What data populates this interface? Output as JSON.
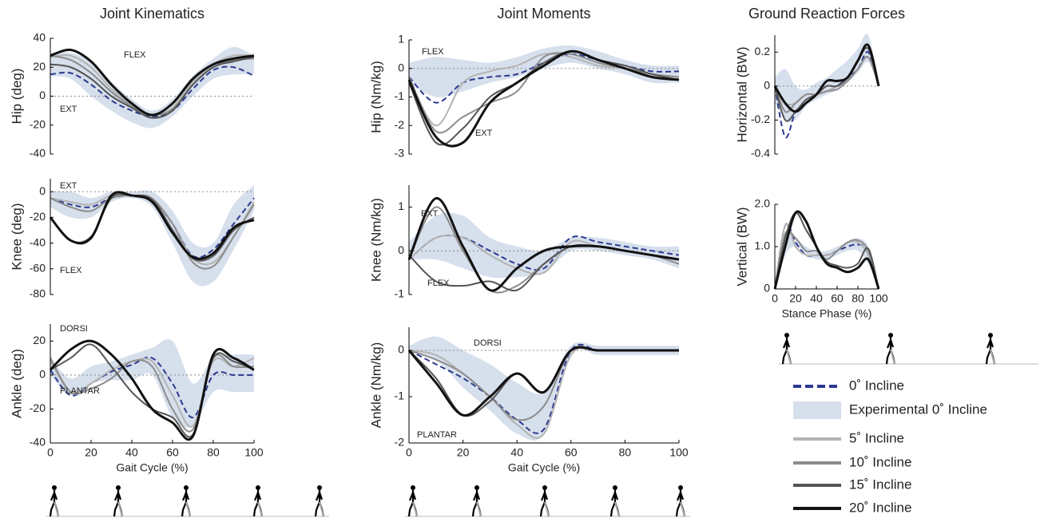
{
  "chart_data": [
    {
      "type": "line",
      "title": "Joint Kinematics",
      "y_label": "Hip (deg)",
      "annotations": [
        "FLEX",
        "EXT"
      ],
      "x": [
        0,
        10,
        20,
        30,
        40,
        50,
        60,
        70,
        80,
        90,
        100
      ],
      "xlim": [
        0,
        100
      ],
      "ylim": [
        -40,
        40
      ],
      "yticks": [
        -40,
        -20,
        0,
        20,
        40
      ],
      "zero_line": true,
      "band": {
        "lower": [
          14,
          12,
          0,
          -10,
          -18,
          -22,
          -14,
          0,
          12,
          15,
          15
        ],
        "upper": [
          30,
          30,
          24,
          10,
          -2,
          -10,
          -2,
          14,
          26,
          34,
          28
        ]
      },
      "series": [
        {
          "values": [
            15,
            16,
            8,
            -3,
            -10,
            -14,
            -10,
            5,
            18,
            20,
            14
          ]
        },
        {
          "values": [
            27,
            28,
            20,
            5,
            -6,
            -13,
            -8,
            10,
            22,
            28,
            28
          ]
        },
        {
          "values": [
            28,
            25,
            16,
            3,
            -7,
            -13,
            -9,
            8,
            20,
            25,
            26
          ]
        },
        {
          "values": [
            22,
            20,
            12,
            0,
            -8,
            -15,
            -10,
            8,
            20,
            24,
            27
          ]
        },
        {
          "values": [
            28,
            32,
            24,
            8,
            -5,
            -13,
            -5,
            12,
            22,
            26,
            28
          ]
        }
      ]
    },
    {
      "type": "line",
      "y_label": "Knee (deg)",
      "annotations": [
        "EXT",
        "FLEX"
      ],
      "x": [
        0,
        10,
        20,
        30,
        40,
        50,
        60,
        70,
        80,
        90,
        100
      ],
      "xlim": [
        0,
        100
      ],
      "ylim": [
        -80,
        10
      ],
      "yticks": [
        -80,
        -60,
        -40,
        -20,
        0
      ],
      "zero_line": true,
      "band": {
        "lower": [
          -12,
          -20,
          -20,
          -8,
          -5,
          -12,
          -40,
          -70,
          -70,
          -45,
          -15
        ],
        "upper": [
          0,
          0,
          -5,
          0,
          0,
          0,
          -15,
          -40,
          -40,
          -10,
          5
        ]
      },
      "series": [
        {
          "values": [
            -5,
            -10,
            -12,
            -5,
            -3,
            -6,
            -25,
            -50,
            -45,
            -25,
            -5
          ]
        },
        {
          "values": [
            -5,
            -8,
            -10,
            -3,
            -3,
            -5,
            -25,
            -52,
            -55,
            -35,
            -8
          ]
        },
        {
          "values": [
            -5,
            -12,
            -15,
            -5,
            -3,
            -6,
            -25,
            -55,
            -58,
            -35,
            -10
          ]
        },
        {
          "values": [
            -20,
            -38,
            -35,
            -5,
            -3,
            -6,
            -30,
            -52,
            -50,
            -30,
            -20
          ]
        },
        {
          "values": [
            -20,
            -38,
            -36,
            -3,
            -3,
            -8,
            -32,
            -51,
            -48,
            -28,
            -22
          ]
        }
      ]
    },
    {
      "type": "line",
      "y_label": "Ankle (deg)",
      "x_label": "Gait Cycle (%)",
      "annotations": [
        "DORSI",
        "PLANTAR"
      ],
      "x": [
        0,
        10,
        20,
        30,
        40,
        50,
        60,
        70,
        80,
        90,
        100
      ],
      "xlim": [
        0,
        100
      ],
      "xticks": [
        0,
        20,
        40,
        60,
        80,
        100
      ],
      "ylim": [
        -40,
        30
      ],
      "yticks": [
        -40,
        -20,
        0,
        20
      ],
      "zero_line": true,
      "band": {
        "lower": [
          0,
          -12,
          -5,
          -3,
          -3,
          0,
          -25,
          -30,
          -10,
          -10,
          -10
        ],
        "upper": [
          10,
          -2,
          5,
          8,
          12,
          16,
          20,
          -5,
          10,
          12,
          12
        ]
      },
      "series": [
        {
          "values": [
            3,
            -12,
            -5,
            2,
            6,
            10,
            -5,
            -25,
            0,
            0,
            0
          ]
        },
        {
          "values": [
            8,
            -10,
            -5,
            3,
            8,
            8,
            -12,
            -30,
            8,
            5,
            10
          ]
        },
        {
          "values": [
            10,
            -10,
            -8,
            -2,
            8,
            5,
            -20,
            -32,
            10,
            5,
            5
          ]
        },
        {
          "values": [
            3,
            10,
            18,
            5,
            -10,
            -20,
            -25,
            -35,
            10,
            8,
            3
          ]
        },
        {
          "values": [
            3,
            15,
            20,
            12,
            -2,
            -20,
            -28,
            -36,
            12,
            10,
            3
          ]
        }
      ]
    },
    {
      "type": "line",
      "title": "Joint Moments",
      "y_label": "Hip (Nm/kg)",
      "annotations": [
        "FLEX",
        "EXT"
      ],
      "x": [
        0,
        10,
        20,
        30,
        40,
        50,
        60,
        70,
        80,
        90,
        100
      ],
      "xlim": [
        0,
        100
      ],
      "ylim": [
        -3,
        1
      ],
      "yticks": [
        -3,
        -2,
        -1,
        0,
        1
      ],
      "zero_line": true,
      "band": {
        "lower": [
          -0.5,
          -1.0,
          -0.8,
          -0.5,
          -0.3,
          0,
          0.2,
          0,
          -0.2,
          -0.5,
          -0.5
        ],
        "upper": [
          0.2,
          0.4,
          0.3,
          0.2,
          0.4,
          0.7,
          0.8,
          0.6,
          0.3,
          0.1,
          0.1
        ]
      },
      "series": [
        {
          "values": [
            -0.3,
            -1.2,
            -0.5,
            -0.3,
            -0.2,
            0.2,
            0.5,
            0.3,
            0.1,
            -0.1,
            -0.1
          ]
        },
        {
          "values": [
            -0.3,
            -2.0,
            -0.5,
            -0.1,
            0.1,
            0.5,
            0.4,
            0.1,
            0,
            -0.2,
            -0.3
          ]
        },
        {
          "values": [
            -0.3,
            -2.2,
            -1.7,
            -1.2,
            -0.8,
            0.4,
            0.5,
            0.2,
            0,
            -0.2,
            -0.3
          ]
        },
        {
          "values": [
            -0.5,
            -2.6,
            -2.1,
            -1.0,
            -0.5,
            0.2,
            0.6,
            0.3,
            0.1,
            -0.2,
            -0.4
          ]
        },
        {
          "values": [
            -0.4,
            -2.4,
            -2.6,
            -1.2,
            -0.5,
            0.1,
            0.6,
            0.3,
            0,
            -0.3,
            -0.4
          ]
        }
      ]
    },
    {
      "type": "line",
      "y_label": "Knee (Nm/kg)",
      "annotations": [
        "EXT",
        "FLEX"
      ],
      "x": [
        0,
        10,
        20,
        30,
        40,
        50,
        60,
        70,
        80,
        90,
        100
      ],
      "xlim": [
        0,
        100
      ],
      "ylim": [
        -1,
        1.5
      ],
      "yticks": [
        -1,
        0,
        1
      ],
      "zero_line": true,
      "band": {
        "lower": [
          -0.2,
          -0.2,
          -0.4,
          -0.6,
          -0.6,
          -0.5,
          0,
          0,
          -0.1,
          -0.2,
          -0.4
        ],
        "upper": [
          0.2,
          0.8,
          0.8,
          0.3,
          0.1,
          0,
          0.3,
          0.3,
          0.2,
          0.1,
          0.1
        ]
      },
      "series": [
        {
          "values": [
            -0.2,
            0.3,
            0.3,
            0,
            -0.3,
            -0.4,
            0.3,
            0.2,
            0.1,
            0,
            -0.1
          ]
        },
        {
          "values": [
            -0.2,
            0.3,
            0.3,
            -0.1,
            -0.4,
            -0.5,
            0.2,
            0.1,
            0,
            -0.1,
            -0.2
          ]
        },
        {
          "values": [
            -0.2,
            1.0,
            0,
            -0.9,
            -0.8,
            -0.3,
            0.1,
            0.1,
            0,
            -0.1,
            -0.3
          ]
        },
        {
          "values": [
            -0.1,
            -0.7,
            -0.8,
            -0.7,
            -0.9,
            -0.3,
            0.1,
            0.1,
            0,
            -0.1,
            -0.2
          ]
        },
        {
          "values": [
            -0.2,
            1.2,
            0.1,
            -0.9,
            -0.4,
            0,
            0.1,
            0.1,
            0,
            -0.1,
            -0.2
          ]
        }
      ]
    },
    {
      "type": "line",
      "y_label": "Ankle (Nm/kg)",
      "x_label": "Gait Cycle (%)",
      "annotations": [
        "DORSI",
        "PLANTAR"
      ],
      "x": [
        0,
        10,
        20,
        30,
        40,
        50,
        60,
        70,
        80,
        90,
        100
      ],
      "xlim": [
        0,
        100
      ],
      "xticks": [
        0,
        20,
        40,
        60,
        80,
        100
      ],
      "ylim": [
        -2,
        0.5
      ],
      "yticks": [
        -2,
        -1,
        0
      ],
      "zero_line": true,
      "band": {
        "lower": [
          0,
          -0.2,
          -0.8,
          -1.3,
          -1.8,
          -1.8,
          -0.1,
          -0.1,
          -0.1,
          -0.1,
          -0.1
        ],
        "upper": [
          0.1,
          0.3,
          0,
          -0.3,
          -0.7,
          -0.9,
          0.1,
          0.1,
          0.1,
          0.1,
          0.1
        ]
      },
      "series": [
        {
          "values": [
            0,
            -0.3,
            -0.6,
            -1.0,
            -1.5,
            -1.7,
            0,
            0,
            0,
            0,
            0
          ]
        },
        {
          "values": [
            0,
            -0.1,
            -0.5,
            -1.0,
            -1.6,
            -1.8,
            -0.1,
            0,
            0,
            0,
            0
          ]
        },
        {
          "values": [
            0,
            -0.2,
            -0.5,
            -1.0,
            -1.5,
            -1.2,
            0,
            0,
            0,
            0,
            0
          ]
        },
        {
          "values": [
            0,
            -0.6,
            -1.4,
            -1.1,
            -0.5,
            -0.9,
            0,
            0,
            0,
            0,
            0
          ]
        },
        {
          "values": [
            0,
            -0.7,
            -1.4,
            -1.0,
            -0.5,
            -0.9,
            0,
            0,
            0,
            0,
            0
          ]
        }
      ]
    },
    {
      "type": "line",
      "title": "Ground Reaction Forces",
      "y_label": "Horizontal (BW)",
      "x": [
        0,
        10,
        20,
        30,
        40,
        50,
        60,
        70,
        80,
        90,
        100
      ],
      "xlim": [
        0,
        100
      ],
      "ylim": [
        -0.4,
        0.3
      ],
      "yticks": [
        -0.4,
        -0.2,
        0,
        0.2
      ],
      "zero_line": true,
      "band": {
        "lower": [
          -0.1,
          -0.2,
          -0.2,
          -0.12,
          -0.08,
          -0.05,
          -0.02,
          0.02,
          0.08,
          0.14,
          0
        ],
        "upper": [
          0.05,
          0.1,
          0,
          -0.02,
          0.02,
          0.05,
          0.1,
          0.15,
          0.22,
          0.3,
          0
        ]
      },
      "series": [
        {
          "values": [
            0,
            -0.3,
            -0.15,
            -0.1,
            -0.05,
            -0.03,
            0,
            0.05,
            0.1,
            0.2,
            0
          ]
        },
        {
          "values": [
            0,
            -0.1,
            -0.1,
            -0.05,
            -0.05,
            -0.03,
            0,
            0.03,
            0.1,
            0.17,
            0
          ]
        },
        {
          "values": [
            0,
            -0.15,
            -0.1,
            -0.05,
            -0.05,
            -0.03,
            -0.02,
            0.03,
            0.1,
            0.17,
            0
          ]
        },
        {
          "values": [
            0,
            -0.2,
            -0.15,
            -0.08,
            -0.05,
            0,
            0,
            0.05,
            0.15,
            0.22,
            0
          ]
        },
        {
          "values": [
            0,
            -0.1,
            -0.15,
            -0.1,
            -0.05,
            0.03,
            0.03,
            0.05,
            0.15,
            0.24,
            0
          ]
        }
      ]
    },
    {
      "type": "line",
      "y_label": "Vertical (BW)",
      "x_label": "Stance Phase (%)",
      "x": [
        0,
        10,
        20,
        30,
        40,
        50,
        60,
        70,
        80,
        90,
        100
      ],
      "xlim": [
        0,
        100
      ],
      "xticks": [
        0,
        20,
        40,
        60,
        80,
        100
      ],
      "ylim": [
        0,
        2
      ],
      "yticks": [
        0,
        {
          "value": 1,
          "label": "1.0"
        },
        {
          "value": 2,
          "label": "2.0"
        }
      ],
      "zero_line": false,
      "band": {
        "lower": [
          0,
          0.8,
          1.0,
          0.8,
          0.7,
          0.7,
          0.8,
          0.9,
          0.9,
          0.6,
          0
        ],
        "upper": [
          0.2,
          1.3,
          1.2,
          1.0,
          0.9,
          0.9,
          1.0,
          1.1,
          1.2,
          1.0,
          0.1
        ]
      },
      "series": [
        {
          "values": [
            0,
            1.5,
            1.1,
            0.8,
            0.8,
            0.8,
            0.9,
            1.0,
            1.05,
            0.9,
            0
          ]
        },
        {
          "values": [
            0,
            1.5,
            1.0,
            0.8,
            0.8,
            0.8,
            0.9,
            1.1,
            1.1,
            0.8,
            0
          ]
        },
        {
          "values": [
            0,
            1.3,
            1.2,
            0.9,
            0.9,
            0.7,
            0.9,
            1.1,
            1.15,
            0.9,
            0
          ]
        },
        {
          "values": [
            0,
            1.2,
            1.8,
            1.4,
            1.0,
            0.65,
            0.55,
            0.5,
            0.6,
            0.95,
            0
          ]
        },
        {
          "values": [
            0,
            1.0,
            1.8,
            1.6,
            1.0,
            0.6,
            0.5,
            0.4,
            0.5,
            0.7,
            0
          ]
        }
      ]
    }
  ],
  "legend": {
    "band": {
      "name": "Experimental 0˚ Incline",
      "color": "#d6dfec"
    },
    "series": [
      {
        "name": "0˚ Incline",
        "color": "#2b3990",
        "dashed": true
      },
      {
        "name": "5˚ Incline",
        "color": "#b3b3b3",
        "dashed": false
      },
      {
        "name": "10˚ Incline",
        "color": "#8c8c8c",
        "dashed": false
      },
      {
        "name": "15˚ Incline",
        "color": "#555555",
        "dashed": false
      },
      {
        "name": "20˚ Incline",
        "color": "#111111",
        "dashed": false
      }
    ]
  }
}
